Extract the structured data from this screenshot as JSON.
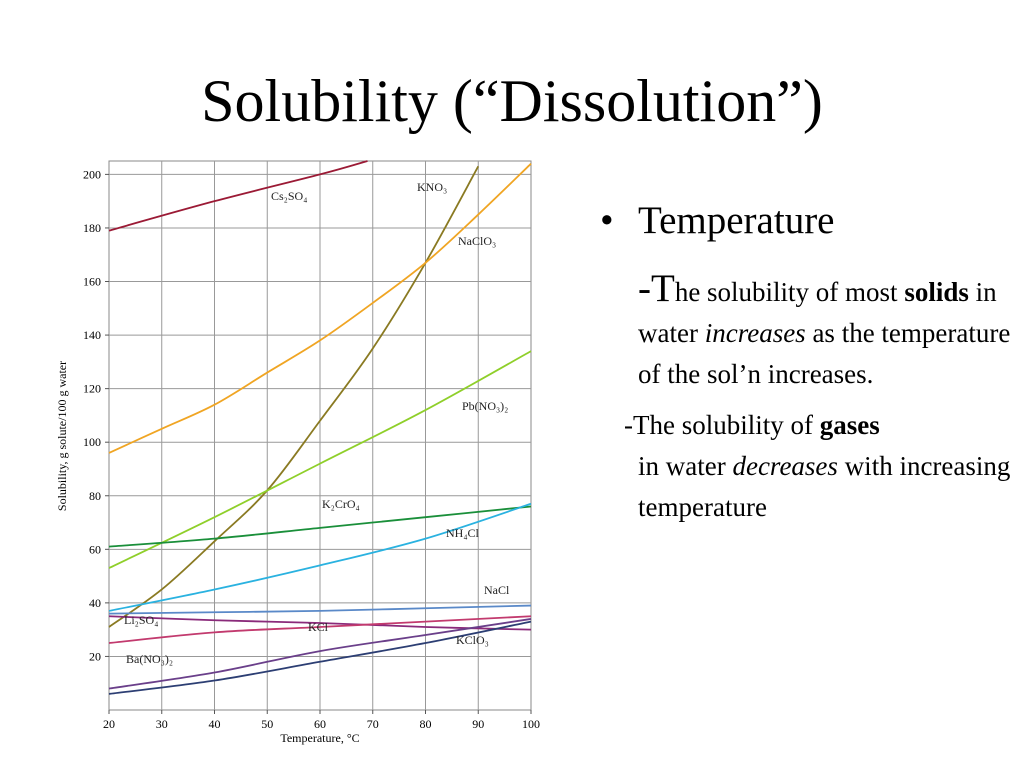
{
  "slide": {
    "title": "Solubility (“Dissolution”)"
  },
  "bullet": {
    "marker": "•",
    "heading": "Temperature",
    "point1": {
      "dash": "-T",
      "text_a": "he solubility of most ",
      "bold": "solids",
      "text_b": " in water ",
      "italic": "increases",
      "text_c": " as the temperature of the sol’n increases."
    },
    "point2": {
      "text_a": "-The solubility of ",
      "bold": "gases",
      "text_b": "in water ",
      "italic": "decreases",
      "text_c": " with increasing temperature"
    }
  },
  "chart_data": {
    "type": "line",
    "xlabel": "Temperature, °C",
    "ylabel": "Solubility, g solute/100 g water",
    "xlim": [
      20,
      100
    ],
    "ylim": [
      0,
      205
    ],
    "xticks": [
      20,
      30,
      40,
      50,
      60,
      70,
      80,
      90,
      100
    ],
    "yticks": [
      20,
      40,
      60,
      80,
      100,
      120,
      140,
      160,
      180,
      200
    ],
    "grid": true,
    "series": [
      {
        "name": "Cs₂SO₄",
        "color": "#9b1a35",
        "points": [
          [
            20,
            179
          ],
          [
            40,
            190
          ],
          [
            60,
            200
          ],
          [
            69,
            205
          ]
        ]
      },
      {
        "name": "KNO₃",
        "color": "#8a7a22",
        "points": [
          [
            20,
            31
          ],
          [
            30,
            45
          ],
          [
            40,
            63
          ],
          [
            50,
            82
          ],
          [
            60,
            108
          ],
          [
            70,
            135
          ],
          [
            80,
            167
          ],
          [
            90,
            203
          ]
        ]
      },
      {
        "name": "NaClO₃",
        "color": "#f0a523",
        "points": [
          [
            20,
            96
          ],
          [
            30,
            105
          ],
          [
            40,
            114
          ],
          [
            50,
            126
          ],
          [
            60,
            138
          ],
          [
            70,
            152
          ],
          [
            80,
            167
          ],
          [
            90,
            185
          ],
          [
            100,
            204
          ]
        ]
      },
      {
        "name": "Pb(NO₃)₂",
        "color": "#8fcf2a",
        "points": [
          [
            20,
            53
          ],
          [
            40,
            72
          ],
          [
            60,
            92
          ],
          [
            80,
            112
          ],
          [
            100,
            134
          ]
        ]
      },
      {
        "name": "K₂CrO₄",
        "color": "#1a8f3a",
        "points": [
          [
            20,
            61
          ],
          [
            40,
            64
          ],
          [
            60,
            68
          ],
          [
            80,
            72
          ],
          [
            100,
            76
          ]
        ]
      },
      {
        "name": "NH₄Cl",
        "color": "#2ab2e0",
        "points": [
          [
            20,
            37
          ],
          [
            40,
            45
          ],
          [
            60,
            54
          ],
          [
            80,
            64
          ],
          [
            100,
            77
          ]
        ]
      },
      {
        "name": "NaCl",
        "color": "#5a89c8",
        "points": [
          [
            20,
            36
          ],
          [
            40,
            36.5
          ],
          [
            60,
            37
          ],
          [
            80,
            38
          ],
          [
            100,
            39
          ]
        ]
      },
      {
        "name": "Li₂SO₄",
        "color": "#8a2a7a",
        "points": [
          [
            20,
            35
          ],
          [
            40,
            33.5
          ],
          [
            60,
            32.5
          ],
          [
            80,
            31
          ],
          [
            100,
            30
          ]
        ]
      },
      {
        "name": "KCl",
        "color": "#c23a6e",
        "points": [
          [
            20,
            25
          ],
          [
            40,
            29
          ],
          [
            60,
            31
          ],
          [
            80,
            33
          ],
          [
            100,
            35
          ]
        ]
      },
      {
        "name": "KClO₃",
        "color": "#6a3f8a",
        "points": [
          [
            20,
            8
          ],
          [
            40,
            14
          ],
          [
            60,
            22
          ],
          [
            80,
            28
          ],
          [
            100,
            34
          ]
        ]
      },
      {
        "name": "Ba(NO₃)₂",
        "color": "#2c3e73",
        "points": [
          [
            20,
            6
          ],
          [
            40,
            11
          ],
          [
            60,
            18
          ],
          [
            80,
            25
          ],
          [
            100,
            33
          ]
        ]
      }
    ]
  }
}
